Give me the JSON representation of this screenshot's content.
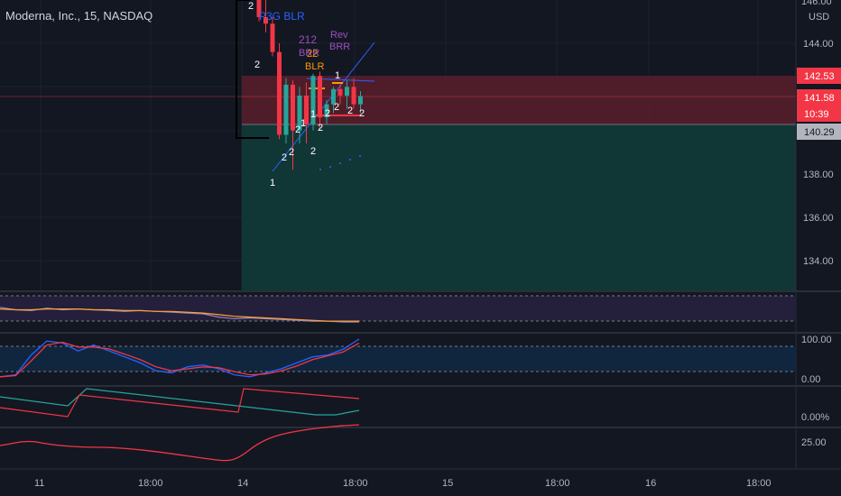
{
  "header": {
    "symbol_title": "Moderna, Inc., 15, NASDAQ"
  },
  "price_axis": {
    "currency": "USD",
    "top_partial_label": "146.00",
    "ticks": [
      "144.00",
      "138.00",
      "136.00",
      "134.00"
    ],
    "badges": [
      {
        "label": "142.53",
        "color": "#f23645",
        "text_color": "#ffffff"
      },
      {
        "label": "141.58",
        "color": "#f23645",
        "text_color": "#ffffff"
      },
      {
        "label": "10:39",
        "color": "#f23645",
        "text_color": "#ffffff"
      },
      {
        "label": "140.29",
        "color": "#b2b5be",
        "text_color": "#131722"
      }
    ]
  },
  "indicator_axis": {
    "pane2_label": "100.00",
    "pane2_low_label": "0.00",
    "pane3_label": "0.00%",
    "pane4_label": "25.00"
  },
  "time_axis": {
    "labels": [
      "11",
      "18:00",
      "14",
      "18:00",
      "15",
      "18:00",
      "16",
      "18:00"
    ]
  },
  "annotations": {
    "top_digit": "2",
    "p3g_blr": "P3G BLR",
    "blr_212": "212",
    "brr_partial": "BRR",
    "blr_22": "22",
    "blr": "BLR",
    "rev": "Rev",
    "brr": "BRR",
    "bar_counts": [
      "2",
      "2",
      "2",
      "1",
      "2",
      "2",
      "1",
      "2",
      "1",
      "2",
      "2",
      "1",
      "2",
      "2"
    ]
  },
  "colors": {
    "background": "#131722",
    "up": "#26a69a",
    "down": "#f23645",
    "stop_zone": "#5a1f2b",
    "target_zone": "#123a38",
    "rsi_band": "#241f3a",
    "stoch_band": "#10263f"
  },
  "chart_data": {
    "type": "candlestick",
    "candles": [
      {
        "o": 146.8,
        "h": 147.2,
        "l": 145.0,
        "c": 145.2
      },
      {
        "o": 145.2,
        "h": 146.0,
        "l": 144.5,
        "c": 144.9
      },
      {
        "o": 144.9,
        "h": 145.2,
        "l": 143.4,
        "c": 143.6
      },
      {
        "o": 143.6,
        "h": 144.0,
        "l": 139.6,
        "c": 139.8
      },
      {
        "o": 139.8,
        "h": 142.4,
        "l": 139.4,
        "c": 142.1
      },
      {
        "o": 142.1,
        "h": 142.3,
        "l": 138.2,
        "c": 140.0
      },
      {
        "o": 140.0,
        "h": 142.0,
        "l": 139.4,
        "c": 141.6
      },
      {
        "o": 141.6,
        "h": 142.2,
        "l": 139.4,
        "c": 140.3
      },
      {
        "o": 140.3,
        "h": 142.6,
        "l": 140.0,
        "c": 142.5
      },
      {
        "o": 142.5,
        "h": 142.7,
        "l": 140.0,
        "c": 140.6
      },
      {
        "o": 140.6,
        "h": 141.4,
        "l": 140.3,
        "c": 141.2
      },
      {
        "o": 141.2,
        "h": 142.0,
        "l": 140.8,
        "c": 141.9
      },
      {
        "o": 141.9,
        "h": 142.1,
        "l": 141.2,
        "c": 141.6
      },
      {
        "o": 141.6,
        "h": 142.3,
        "l": 141.0,
        "c": 142.0
      },
      {
        "o": 142.0,
        "h": 142.4,
        "l": 141.0,
        "c": 141.2
      },
      {
        "o": 141.2,
        "h": 141.8,
        "l": 140.8,
        "c": 141.58
      }
    ],
    "stop_level": 142.53,
    "entry_level": 140.29,
    "current_price": 141.58,
    "y_range": [
      133.0,
      146.6
    ],
    "oscillators": {
      "rsi_like": [
        58,
        55,
        54,
        57,
        55,
        56,
        55,
        54,
        53,
        54,
        53,
        52,
        51,
        50,
        46,
        44,
        45,
        44,
        43,
        42,
        41,
        41,
        40,
        40
      ],
      "rsi_signal": [
        56,
        55,
        55,
        56,
        56,
        56,
        55,
        55,
        54,
        54,
        53,
        53,
        52,
        51,
        49,
        47,
        46,
        45,
        44,
        43,
        42,
        41,
        41,
        41
      ],
      "stoch_k": [
        5,
        10,
        60,
        95,
        90,
        70,
        85,
        70,
        55,
        40,
        20,
        15,
        30,
        35,
        25,
        10,
        5,
        15,
        25,
        40,
        55,
        60,
        75,
        100
      ],
      "stoch_d": [
        5,
        8,
        45,
        85,
        92,
        80,
        80,
        75,
        62,
        48,
        30,
        20,
        25,
        30,
        28,
        18,
        10,
        12,
        20,
        32,
        48,
        58,
        68,
        90
      ]
    }
  }
}
